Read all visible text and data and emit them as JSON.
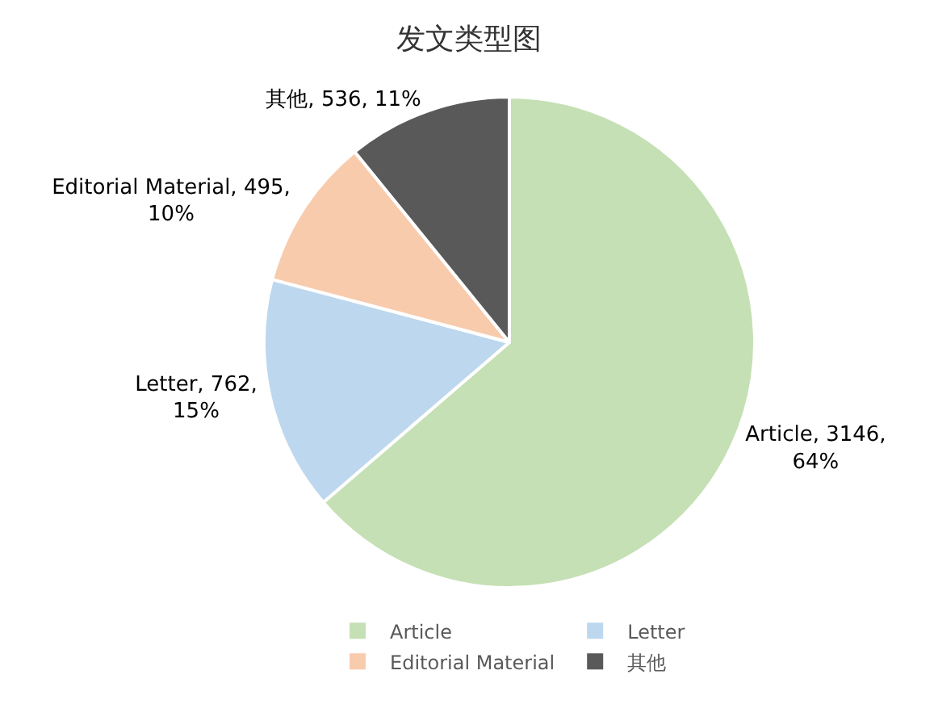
{
  "chart_data": {
    "type": "pie",
    "title": "发文类型图",
    "categories": [
      "Article",
      "Letter",
      "Editorial Material",
      "其他"
    ],
    "values": [
      3146,
      762,
      495,
      536
    ],
    "colors": [
      "#c5e0b4",
      "#bdd7ee",
      "#f8cbad",
      "#595959"
    ],
    "value_labels": [
      "Article, 3146, 64%",
      "Letter, 762, 15%",
      "Editorial Material, 495, 10%",
      "其他, 536, 11%"
    ],
    "legend": "bottom"
  }
}
